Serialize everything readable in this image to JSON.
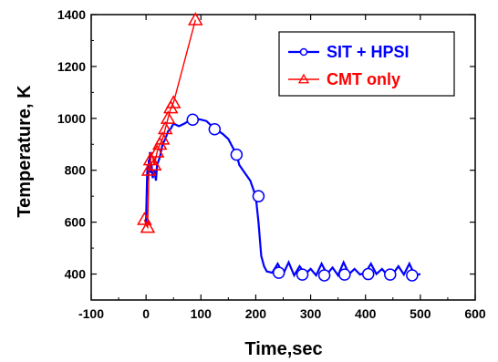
{
  "chart_data": {
    "type": "line",
    "xlabel": "Time,sec",
    "ylabel": "Temperature, K",
    "xlim": [
      -100,
      600
    ],
    "ylim": [
      300,
      1400
    ],
    "xticks": [
      -100,
      0,
      100,
      200,
      300,
      400,
      500,
      600
    ],
    "yticks": [
      400,
      600,
      800,
      1000,
      1200,
      1400
    ],
    "grid": false,
    "legend_position": "top-right",
    "series": [
      {
        "name": "SIT + HPSI",
        "color": "#0000ff",
        "marker": "circle",
        "x": [
          0,
          2,
          3,
          4,
          5,
          6,
          7,
          8,
          10,
          12,
          15,
          18,
          20,
          25,
          30,
          35,
          40,
          45,
          50,
          60,
          70,
          85,
          100,
          110,
          125,
          140,
          150,
          160,
          165,
          170,
          180,
          190,
          200,
          205,
          210,
          215,
          220,
          230,
          240,
          250,
          260,
          270,
          280,
          290,
          300,
          310,
          320,
          330,
          340,
          350,
          360,
          370,
          380,
          390,
          400,
          410,
          420,
          430,
          440,
          450,
          460,
          470,
          480,
          490,
          500
        ],
        "y": [
          600,
          780,
          820,
          760,
          840,
          800,
          870,
          790,
          820,
          770,
          800,
          760,
          820,
          850,
          900,
          920,
          950,
          960,
          980,
          970,
          980,
          1000,
          995,
          990,
          960,
          940,
          920,
          880,
          860,
          820,
          790,
          760,
          700,
          600,
          470,
          430,
          410,
          405,
          440,
          400,
          445,
          395,
          430,
          400,
          420,
          395,
          440,
          400,
          425,
          395,
          445,
          400,
          420,
          398,
          405,
          440,
          400,
          420,
          395,
          400,
          430,
          398,
          440,
          395,
          400
        ],
        "marker_x": [
          85,
          125,
          165,
          205,
          242,
          285,
          325,
          362,
          405,
          445,
          485
        ],
        "marker_y": [
          995,
          958,
          860,
          700,
          405,
          398,
          395,
          398,
          400,
          398,
          395
        ]
      },
      {
        "name": "CMT only",
        "color": "#ff0000",
        "marker": "triangle",
        "x": [
          -3,
          0,
          3,
          5,
          8,
          10,
          15,
          20,
          25,
          30,
          35,
          40,
          45,
          50,
          90
        ],
        "y": [
          610,
          590,
          580,
          800,
          840,
          870,
          820,
          870,
          900,
          920,
          960,
          1000,
          1040,
          1060,
          1380
        ],
        "marker_x": [
          -3,
          3,
          5,
          8,
          15,
          20,
          25,
          30,
          35,
          40,
          45,
          50,
          90
        ],
        "marker_y": [
          610,
          580,
          800,
          840,
          820,
          870,
          900,
          920,
          960,
          1000,
          1040,
          1060,
          1380
        ]
      }
    ]
  }
}
